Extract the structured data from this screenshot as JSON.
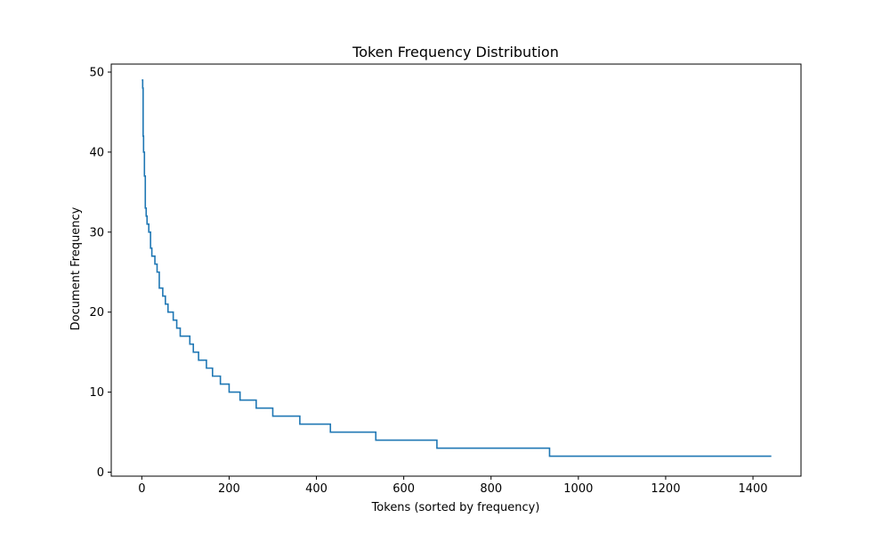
{
  "chart_data": {
    "type": "line",
    "title": "Token Frequency Distribution",
    "xlabel": "Tokens (sorted by frequency)",
    "ylabel": "Document Frequency",
    "xlim": [
      -70,
      1510
    ],
    "ylim": [
      -0.5,
      51
    ],
    "xticks": [
      0,
      200,
      400,
      600,
      800,
      1000,
      1200,
      1400
    ],
    "yticks": [
      0,
      10,
      20,
      30,
      40,
      50
    ],
    "grid": false,
    "line_color": "#1f77b4",
    "series": [
      {
        "drawstyle": "steps-post",
        "x": [
          0,
          2,
          3,
          4,
          6,
          8,
          10,
          12,
          16,
          20,
          23,
          26,
          30,
          35,
          40,
          44,
          48,
          54,
          60,
          66,
          72,
          80,
          88,
          100,
          110,
          118,
          130,
          148,
          162,
          180,
          200,
          225,
          262,
          300,
          362,
          432,
          536,
          676,
          934,
          1442
        ],
        "y": [
          49,
          48,
          42,
          40,
          37,
          33,
          32,
          31,
          30,
          28,
          27,
          27,
          26,
          25,
          23,
          23,
          22,
          21,
          20,
          20,
          19,
          18,
          17,
          17,
          16,
          15,
          14,
          13,
          12,
          11,
          10,
          9,
          8,
          7,
          6,
          5,
          4,
          3,
          2,
          2
        ]
      }
    ]
  }
}
